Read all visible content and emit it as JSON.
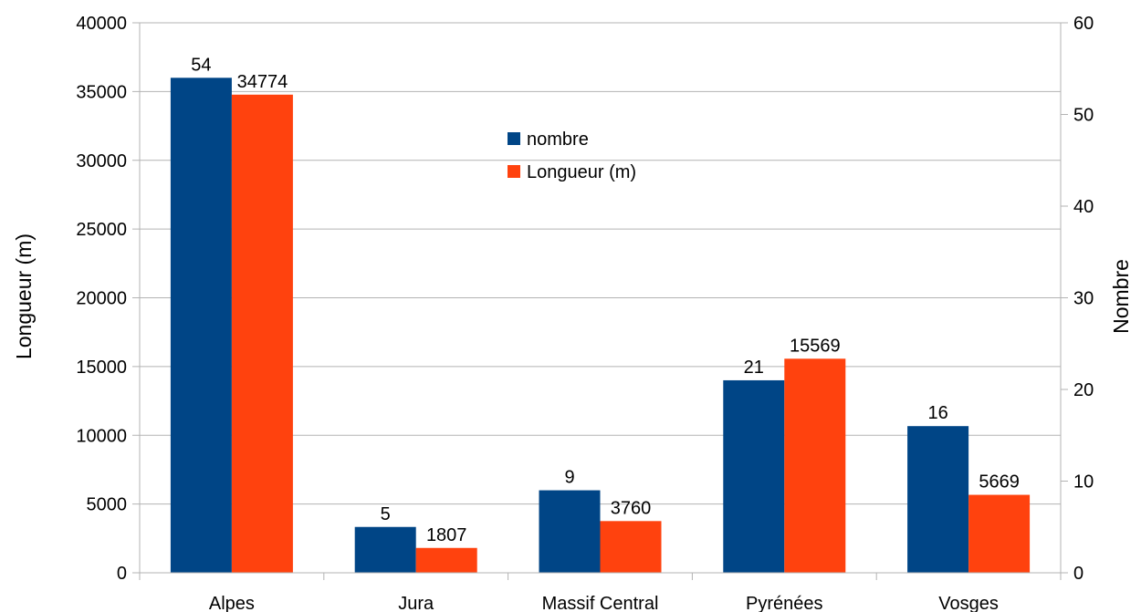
{
  "chart_data": {
    "type": "bar",
    "categories": [
      "Alpes",
      "Jura",
      "Massif Central",
      "Pyrénées",
      "Vosges"
    ],
    "series": [
      {
        "name": "nombre",
        "axis": "right",
        "color": "#004586",
        "values": [
          54,
          5,
          9,
          21,
          16
        ]
      },
      {
        "name": "Longueur (m)",
        "axis": "left",
        "color": "#ff420e",
        "values": [
          34774,
          1807,
          3760,
          15569,
          5669
        ]
      }
    ],
    "ylabel": "Longueur (m)",
    "y2label": "Nombre",
    "ylim": [
      0,
      40000
    ],
    "y2lim": [
      0,
      60
    ],
    "yticks": [
      "0",
      "5000",
      "10000",
      "15000",
      "20000",
      "25000",
      "30000",
      "35000",
      "40000"
    ],
    "y2ticks": [
      "0",
      "10",
      "20",
      "30",
      "40",
      "50",
      "60"
    ],
    "grid": true,
    "legend_position": "top-center"
  }
}
